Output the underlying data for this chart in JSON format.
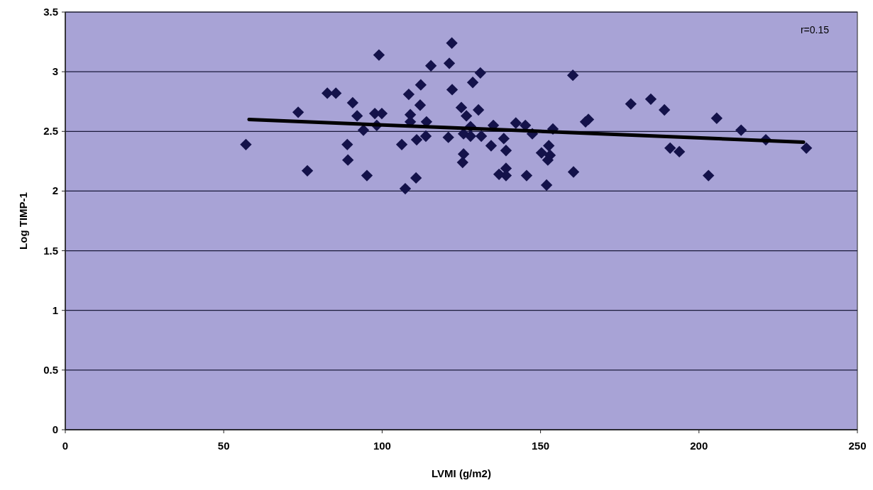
{
  "chart_data": {
    "type": "scatter",
    "xlabel": "LVMI (g/m2)",
    "ylabel": "Log TIMP-1",
    "annotations": [
      "r=0.15"
    ],
    "xlim": [
      0,
      250
    ],
    "xticks": [
      0,
      50,
      100,
      150,
      200,
      250
    ],
    "ylim": [
      0,
      3.5
    ],
    "yticks": [
      0,
      0.5,
      1,
      1.5,
      2,
      2.5,
      3,
      3.5
    ],
    "grid": "y",
    "marker": "diamond",
    "series": [
      {
        "color": "#14124a",
        "x": [
          57,
          73.5,
          76.4,
          82.7,
          85.4,
          89,
          89.2,
          90.7,
          92.1,
          94.1,
          95.2,
          97.7,
          99.9,
          98.3,
          99,
          106.2,
          107.3,
          108.4,
          108.9,
          108.9,
          112.2,
          112,
          110.7,
          110.9,
          114,
          113.8,
          115.4,
          121.2,
          122,
          131,
          128.6,
          122.1,
          125,
          126.6,
          130.4,
          120.9,
          125.7,
          127.9,
          127.9,
          131.3,
          135.1,
          134.4,
          138.4,
          139.1,
          125.7,
          125.4,
          142.2,
          145.2,
          147.4,
          136.9,
          139.1,
          139.1,
          145.6,
          151.9,
          150.3,
          152.6,
          153,
          152.3,
          153.9,
          160.2,
          160.4,
          165.1,
          164.2,
          178.5,
          184.8,
          189.1,
          190.9,
          193.8,
          203,
          205.6,
          213.3,
          221.1,
          233.9
        ],
        "values": [
          2.39,
          2.66,
          2.17,
          2.82,
          2.82,
          2.39,
          2.26,
          2.74,
          2.63,
          2.51,
          2.13,
          2.65,
          2.65,
          2.55,
          3.14,
          2.39,
          2.02,
          2.81,
          2.64,
          2.58,
          2.89,
          2.72,
          2.11,
          2.43,
          2.58,
          2.46,
          3.05,
          3.07,
          3.24,
          2.99,
          2.91,
          2.85,
          2.7,
          2.63,
          2.68,
          2.45,
          2.48,
          2.54,
          2.46,
          2.46,
          2.55,
          2.38,
          2.44,
          2.34,
          2.31,
          2.24,
          2.57,
          2.55,
          2.48,
          2.14,
          2.19,
          2.13,
          2.13,
          2.05,
          2.32,
          2.38,
          2.3,
          2.26,
          2.52,
          2.97,
          2.16,
          2.6,
          2.58,
          2.73,
          2.77,
          2.68,
          2.36,
          2.33,
          2.13,
          2.61,
          2.51,
          2.43,
          2.36
        ]
      },
      {
        "type": "line",
        "color": "#000000",
        "x": [
          58,
          233
        ],
        "values": [
          2.6,
          2.41
        ],
        "marker": "none",
        "line_style": "solid"
      }
    ]
  }
}
